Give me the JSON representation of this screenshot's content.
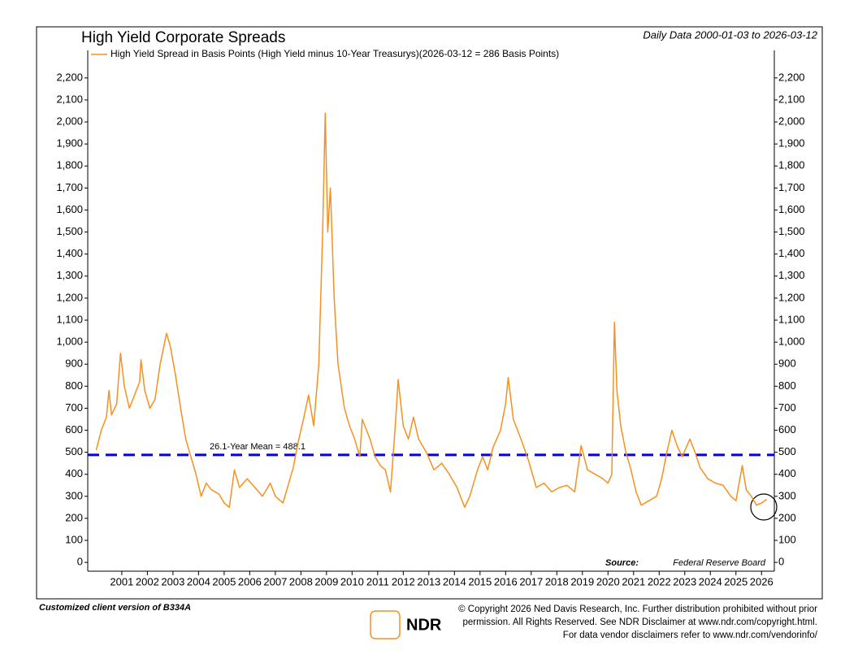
{
  "chart_data": {
    "type": "line",
    "title": "High Yield Corporate Spreads",
    "subtitle": "Daily Data 2000-01-03 to 2026-03-12",
    "source_label": "Source:",
    "source": "Federal Reserve Board",
    "mean": 488.1,
    "mean_label": "26.1-Year Mean = 488.1",
    "mean_color": "#0000ee",
    "x": [
      2000.0,
      2000.2,
      2000.4,
      2000.5,
      2000.6,
      2000.8,
      2000.95,
      2001.1,
      2001.3,
      2001.5,
      2001.7,
      2001.75,
      2001.9,
      2002.1,
      2002.3,
      2002.5,
      2002.75,
      2002.9,
      2003.1,
      2003.3,
      2003.5,
      2003.7,
      2003.9,
      2004.1,
      2004.3,
      2004.5,
      2004.8,
      2005.0,
      2005.2,
      2005.4,
      2005.6,
      2005.9,
      2006.2,
      2006.5,
      2006.8,
      2007.0,
      2007.3,
      2007.5,
      2007.7,
      2007.9,
      2008.1,
      2008.3,
      2008.5,
      2008.7,
      2008.85,
      2008.95,
      2009.05,
      2009.15,
      2009.3,
      2009.45,
      2009.7,
      2009.9,
      2010.1,
      2010.3,
      2010.4,
      2010.7,
      2010.9,
      2011.1,
      2011.3,
      2011.5,
      2011.7,
      2011.8,
      2012.0,
      2012.2,
      2012.4,
      2012.6,
      2012.9,
      2013.2,
      2013.5,
      2013.8,
      2014.1,
      2014.4,
      2014.6,
      2014.9,
      2015.1,
      2015.3,
      2015.5,
      2015.8,
      2016.0,
      2016.1,
      2016.3,
      2016.6,
      2016.9,
      2017.2,
      2017.5,
      2017.8,
      2018.1,
      2018.4,
      2018.7,
      2018.95,
      2019.2,
      2019.5,
      2019.8,
      2020.0,
      2020.15,
      2020.25,
      2020.35,
      2020.5,
      2020.7,
      2020.9,
      2021.1,
      2021.3,
      2021.6,
      2021.9,
      2022.1,
      2022.3,
      2022.5,
      2022.7,
      2022.9,
      2023.2,
      2023.4,
      2023.6,
      2023.9,
      2024.2,
      2024.5,
      2024.8,
      2025.0,
      2025.25,
      2025.4,
      2025.6,
      2025.8,
      2026.0,
      2026.2
    ],
    "series": [
      {
        "name": "High Yield Spread in Basis Points (High Yield minus 10-Year Treasurys)(2026-03-12 = 286 Basis Points)",
        "color": "#f7901e",
        "values": [
          510,
          600,
          660,
          780,
          670,
          720,
          950,
          800,
          700,
          760,
          820,
          920,
          780,
          700,
          740,
          900,
          1040,
          980,
          850,
          700,
          560,
          480,
          400,
          300,
          360,
          330,
          310,
          270,
          250,
          420,
          340,
          380,
          340,
          300,
          360,
          300,
          270,
          350,
          430,
          550,
          650,
          760,
          620,
          900,
          1500,
          2040,
          1500,
          1700,
          1200,
          900,
          700,
          620,
          560,
          480,
          650,
          560,
          480,
          440,
          420,
          320,
          640,
          830,
          620,
          560,
          660,
          560,
          500,
          420,
          450,
          400,
          340,
          250,
          300,
          420,
          480,
          420,
          520,
          600,
          720,
          840,
          650,
          560,
          460,
          340,
          360,
          320,
          340,
          350,
          320,
          530,
          420,
          400,
          380,
          360,
          400,
          1090,
          780,
          620,
          500,
          420,
          320,
          260,
          280,
          300,
          380,
          500,
          600,
          530,
          480,
          560,
          500,
          430,
          380,
          360,
          350,
          300,
          280,
          440,
          330,
          300,
          260,
          270,
          286
        ]
      }
    ],
    "xlim": [
      1999.67,
      2026.5
    ],
    "xticks": [
      2001,
      2002,
      2003,
      2004,
      2005,
      2006,
      2007,
      2008,
      2009,
      2010,
      2011,
      2012,
      2013,
      2014,
      2015,
      2016,
      2017,
      2018,
      2019,
      2020,
      2021,
      2022,
      2023,
      2024,
      2025,
      2026
    ],
    "ylim": [
      -40,
      2325
    ],
    "yticks": [
      0,
      100,
      200,
      300,
      400,
      500,
      600,
      700,
      800,
      900,
      {
        "value": 1000,
        "label": "1,000"
      },
      {
        "value": 1100,
        "label": "1,100"
      },
      {
        "value": 1200,
        "label": "1,200"
      },
      {
        "value": 1300,
        "label": "1,300"
      },
      {
        "value": 1400,
        "label": "1,400"
      },
      {
        "value": 1500,
        "label": "1,500"
      },
      {
        "value": 1600,
        "label": "1,600"
      },
      {
        "value": 1700,
        "label": "1,700"
      },
      {
        "value": 1800,
        "label": "1,800"
      },
      {
        "value": 1900,
        "label": "1,900"
      },
      {
        "value": 2000,
        "label": "2,000"
      },
      {
        "value": 2100,
        "label": "2,100"
      },
      {
        "value": 2200,
        "label": "2,200"
      }
    ]
  },
  "footer": {
    "left": "Customized client version of B334A",
    "logo": "NDR",
    "lines": [
      "© Copyright 2026 Ned Davis Research, Inc. Further distribution prohibited without prior",
      "permission. All Rights Reserved. See NDR Disclaimer at  www.ndr.com/copyright.html.",
      "For data vendor disclaimers refer to www.ndr.com/vendorinfo/"
    ]
  }
}
